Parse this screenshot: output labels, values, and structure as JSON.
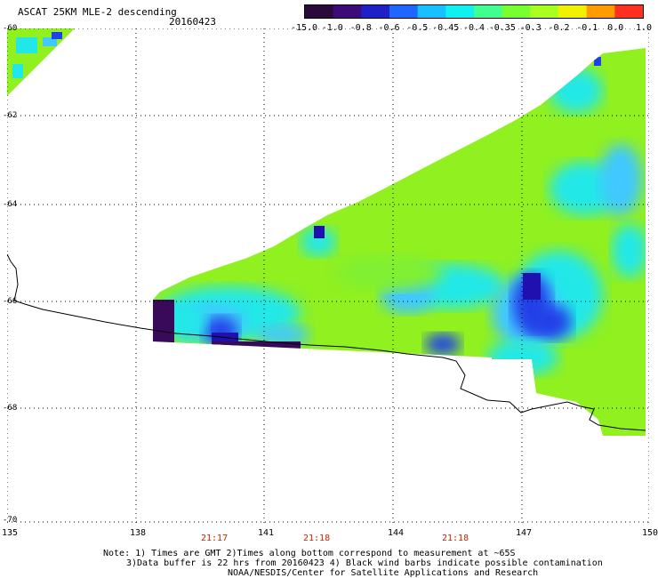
{
  "header": {
    "title": "ASCAT 25KM MLE-2 descending",
    "date": "20160423"
  },
  "colorbar": {
    "labels": [
      "-15.0",
      "-1.0",
      "-0.8",
      "-0.6",
      "-0.5",
      "-0.45",
      "-0.4",
      "-0.35",
      "-0.3",
      "-0.2",
      "-0.1",
      "0.0",
      "1.0"
    ],
    "colors": [
      "#2a0a3a",
      "#3d0a7a",
      "#2020c8",
      "#1e66ff",
      "#18c0ff",
      "#10f0f0",
      "#40ff90",
      "#78ff30",
      "#a8ff20",
      "#f0f000",
      "#ff9a00",
      "#ff3020"
    ]
  },
  "map": {
    "lat_labels": [
      "-60",
      "-62",
      "-64",
      "-66",
      "-68",
      "-70"
    ],
    "lon_labels": [
      "135",
      "138",
      "141",
      "144",
      "147",
      "150"
    ],
    "time_labels": [
      "21:17",
      "21:18",
      "21:18"
    ],
    "colors": {
      "green": "#90f020",
      "green2": "#80f030",
      "cyan": "#20e8e8",
      "lightblue": "#40c8ff",
      "blue": "#2040e8",
      "darkblue": "#2010b0",
      "purple": "#3a0a5a"
    }
  },
  "notes": [
    "Note: 1) Times are GMT 2)Times along bottom correspond to measurement at ~65S",
    "3)Data buffer is 22 hrs from 20160423 4) Black wind barbs indicate possible contamination",
    "NOAA/NESDIS/Center for Satellite Applications and Research"
  ]
}
